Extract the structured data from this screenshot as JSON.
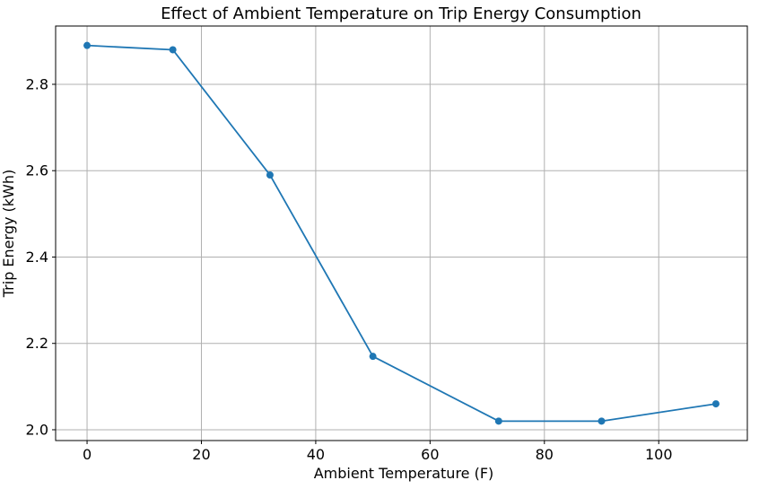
{
  "chart_data": {
    "type": "line",
    "title": "Effect of Ambient Temperature on Trip Energy Consumption",
    "xlabel": "Ambient Temperature (F)",
    "ylabel": "Trip Energy (kWh)",
    "x": [
      0,
      15,
      32,
      50,
      72,
      90,
      110
    ],
    "y": [
      2.89,
      2.88,
      2.59,
      2.17,
      2.02,
      2.02,
      2.06
    ],
    "series_name": "Trip Energy",
    "xlim": [
      -5.5,
      115.5
    ],
    "ylim": [
      1.975,
      2.935
    ],
    "xticks": [
      0,
      20,
      40,
      60,
      80,
      100
    ],
    "yticks": [
      2.0,
      2.2,
      2.4,
      2.6,
      2.8
    ],
    "grid": true,
    "legend": "none",
    "marker": "circle",
    "colors": {
      "line": "#1f77b4",
      "marker": "#1f77b4",
      "grid": "#b0b0b0",
      "spine": "#000000",
      "background": "#ffffff"
    }
  }
}
